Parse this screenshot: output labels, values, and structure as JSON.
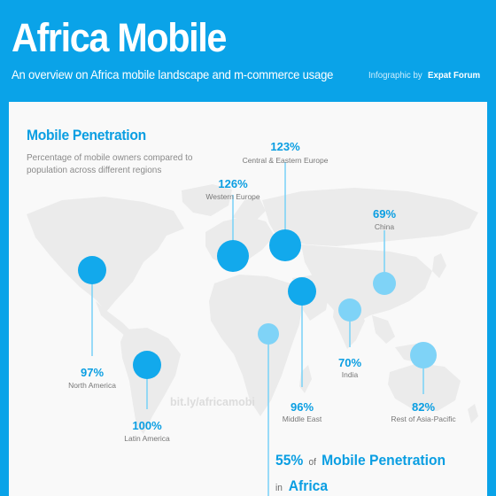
{
  "header": {
    "title": "Africa Mobile",
    "subtitle": "An overview on Africa mobile landscape and m-commerce usage",
    "credit_prefix": "Infographic by",
    "credit_brand": "Expat Forum"
  },
  "section": {
    "title": "Mobile Penetration",
    "description": "Percentage of mobile owners compared to population  across different regions"
  },
  "regions": [
    {
      "name": "North America",
      "percent": "97%",
      "value": 97
    },
    {
      "name": "Latin America",
      "percent": "100%",
      "value": 100
    },
    {
      "name": "Western Europe",
      "percent": "126%",
      "value": 126
    },
    {
      "name": "Central & Eastern Europe",
      "percent": "123%",
      "value": 123
    },
    {
      "name": "China",
      "percent": "69%",
      "value": 69
    },
    {
      "name": "Middle East",
      "percent": "96%",
      "value": 96
    },
    {
      "name": "India",
      "percent": "70%",
      "value": 70
    },
    {
      "name": "Rest of Asia-Pacific",
      "percent": "82%",
      "value": 82
    },
    {
      "name": "Africa",
      "percent": "55%",
      "value": 55
    }
  ],
  "watermark": "bit.ly/africamobi",
  "africa_stat": {
    "percent": "55%",
    "of": "of",
    "label": "Mobile Penetration",
    "in": "in",
    "region": "Africa"
  },
  "colors": {
    "header_bg": "#0aa3e8",
    "accent": "#0a9ee2",
    "bubble_dark": "#12a9ec",
    "bubble_light": "#7fd3f7",
    "land": "#ebebeb"
  }
}
